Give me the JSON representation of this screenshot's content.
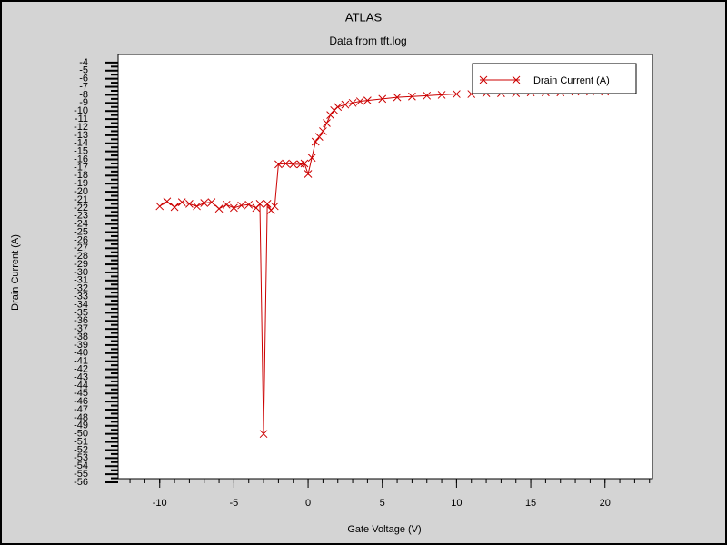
{
  "chart_data": {
    "type": "line",
    "title": "ATLAS",
    "subtitle": "Data from tft.log",
    "x_label": "Gate Voltage (V)",
    "y_label": "Drain Current (A)",
    "x": [
      -10,
      -9.5,
      -9,
      -8.5,
      -8,
      -7.5,
      -7,
      -6.5,
      -6,
      -5.5,
      -5,
      -4.5,
      -4,
      -3.5,
      -3.25,
      -3,
      -2.75,
      -2.5,
      -2.25,
      -2,
      -1.5,
      -1,
      -0.5,
      -0.25,
      0,
      0.25,
      0.5,
      0.75,
      1,
      1.25,
      1.5,
      1.75,
      2,
      2.5,
      3,
      3.5,
      4,
      5,
      6,
      7,
      8,
      9,
      10,
      11,
      12,
      13,
      14,
      15,
      16,
      17,
      18,
      19,
      20
    ],
    "series": [
      {
        "name": "Drain Current (A)",
        "color": "#cc0000",
        "values": [
          -21.8,
          -21.2,
          -21.9,
          -21.3,
          -21.5,
          -21.8,
          -21.4,
          -21.3,
          -22.1,
          -21.6,
          -22.0,
          -21.7,
          -21.6,
          -22.0,
          -21.5,
          -50.0,
          -21.5,
          -22.3,
          -21.8,
          -16.6,
          -16.5,
          -16.6,
          -16.6,
          -16.5,
          -17.8,
          -15.8,
          -13.8,
          -13.2,
          -12.5,
          -11.5,
          -10.5,
          -9.9,
          -9.5,
          -9.2,
          -9.0,
          -8.8,
          -8.7,
          -8.5,
          -8.3,
          -8.2,
          -8.1,
          -8.0,
          -7.9,
          -7.9,
          -7.8,
          -7.8,
          -7.8,
          -7.7,
          -7.7,
          -7.7,
          -7.6,
          -7.6,
          -7.6
        ]
      }
    ],
    "xlim": [
      -12.8,
      23.2
    ],
    "xticks": [
      -10,
      -5,
      0,
      5,
      10,
      15,
      20
    ],
    "ylim": [
      -56,
      -3
    ],
    "yticks": [
      -4,
      -5,
      -6,
      -7,
      -8,
      -9,
      -10,
      -11,
      -12,
      -13,
      -14,
      -15,
      -16,
      -17,
      -18,
      -19,
      -20,
      -21,
      -22,
      -23,
      -24,
      -25,
      -26,
      -27,
      -28,
      -29,
      -30,
      -31,
      -32,
      -33,
      -34,
      -35,
      -36,
      -37,
      -38,
      -39,
      -40,
      -41,
      -42,
      -43,
      -44,
      -45,
      -46,
      -47,
      -48,
      -49,
      -50,
      -51,
      -52,
      -53,
      -54,
      -55,
      -56
    ],
    "legend": "top-right"
  }
}
